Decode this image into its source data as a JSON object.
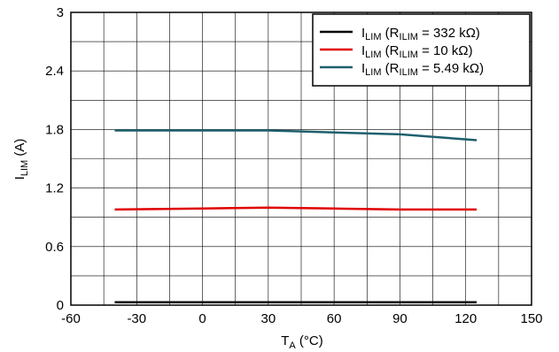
{
  "chart_data": {
    "type": "line",
    "title": "",
    "xlabel": {
      "main": "T",
      "sub": "A",
      "unit": " (°C)"
    },
    "ylabel": {
      "main": "I",
      "sub": "LIM",
      "unit": " (A)"
    },
    "xlim": [
      -60,
      150
    ],
    "ylim": [
      0,
      3
    ],
    "xticks": [
      -60,
      -30,
      0,
      30,
      60,
      90,
      120,
      150
    ],
    "yticks": [
      0,
      0.6,
      1.2,
      1.8,
      2.4,
      3
    ],
    "ytick_labels": [
      "0",
      "0.6",
      "1.2",
      "1.8",
      "2.4",
      "3"
    ],
    "x_minor_step": 15,
    "y_minor_step": 0.3,
    "grid": true,
    "legend_position": "top-right",
    "series": [
      {
        "name": "I_LIM (R_ILIM = 332 kΩ)",
        "legend": {
          "a": "I",
          "a_sub": "LIM",
          "b": " (R",
          "b_sub": "ILIM",
          "c": " = 332 kΩ)"
        },
        "color": "#000000",
        "x": [
          -40,
          0,
          30,
          60,
          90,
          125
        ],
        "y": [
          0.03,
          0.03,
          0.03,
          0.03,
          0.03,
          0.03
        ]
      },
      {
        "name": "I_LIM (R_ILIM = 10 kΩ)",
        "legend": {
          "a": "I",
          "a_sub": "LIM",
          "b": " (R",
          "b_sub": "ILIM",
          "c": " = 10 kΩ)"
        },
        "color": "#e00000",
        "x": [
          -40,
          0,
          30,
          60,
          90,
          125
        ],
        "y": [
          0.98,
          0.99,
          1.0,
          0.99,
          0.98,
          0.98
        ]
      },
      {
        "name": "I_LIM (R_ILIM = 5.49 kΩ)",
        "legend": {
          "a": "I",
          "a_sub": "LIM",
          "b": " (R",
          "b_sub": "ILIM",
          "c": " = 5.49 kΩ)"
        },
        "color": "#1e5f6e",
        "x": [
          -40,
          0,
          30,
          60,
          90,
          125
        ],
        "y": [
          1.79,
          1.79,
          1.79,
          1.77,
          1.75,
          1.69
        ]
      }
    ]
  }
}
